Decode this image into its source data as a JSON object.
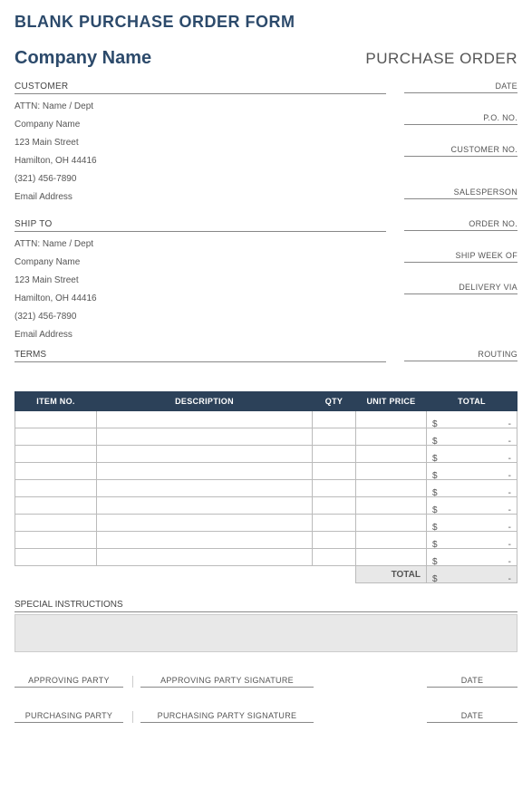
{
  "page": {
    "title": "BLANK PURCHASE ORDER FORM",
    "company_name": "Company Name",
    "po_title": "PURCHASE ORDER"
  },
  "customer": {
    "section_label": "CUSTOMER",
    "attn": "ATTN: Name / Dept",
    "company": "Company Name",
    "street": "123 Main Street",
    "city": "Hamilton, OH  44416",
    "phone": "(321) 456-7890",
    "email": "Email Address"
  },
  "shipto": {
    "section_label": "SHIP TO",
    "attn": "ATTN: Name / Dept",
    "company": "Company Name",
    "street": "123 Main Street",
    "city": "Hamilton, OH  44416",
    "phone": "(321) 456-7890",
    "email": "Email Address"
  },
  "right_fields": {
    "date": "DATE",
    "po_no": "P.O. NO.",
    "customer_no": "CUSTOMER NO.",
    "salesperson": "SALESPERSON",
    "order_no": "ORDER NO.",
    "ship_week": "SHIP WEEK OF",
    "delivery_via": "DELIVERY VIA",
    "routing": "ROUTING"
  },
  "terms_label": "TERMS",
  "table": {
    "headers": {
      "item_no": "ITEM NO.",
      "description": "DESCRIPTION",
      "qty": "QTY",
      "unit_price": "UNIT PRICE",
      "total": "TOTAL"
    },
    "row_count": 9,
    "currency": "$",
    "empty_marker": "-",
    "total_label": "TOTAL",
    "colors": {
      "header_bg": "#2c4159",
      "header_text": "#ffffff",
      "border": "#bbbbbb",
      "total_row_bg": "#e8e8e8"
    }
  },
  "special": {
    "label": "SPECIAL INSTRUCTIONS",
    "bg": "#e8e8e8"
  },
  "signatures": {
    "approving_party": "APPROVING PARTY",
    "approving_sig": "APPROVING PARTY SIGNATURE",
    "purchasing_party": "PURCHASING PARTY",
    "purchasing_sig": "PURCHASING PARTY SIGNATURE",
    "date": "DATE"
  },
  "colors": {
    "accent": "#2c4a6b",
    "text": "#555555",
    "rule": "#888888",
    "background": "#ffffff"
  }
}
